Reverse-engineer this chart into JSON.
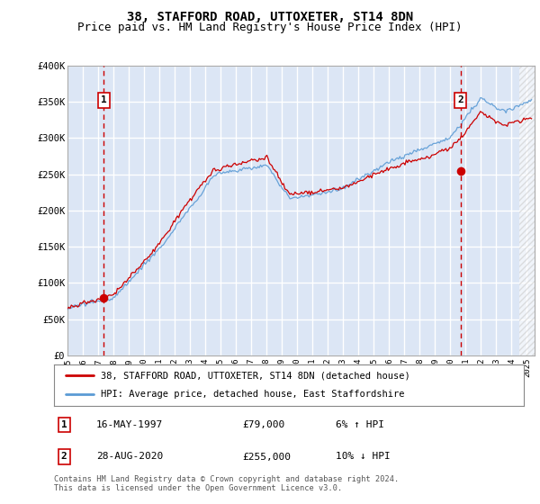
{
  "title": "38, STAFFORD ROAD, UTTOXETER, ST14 8DN",
  "subtitle": "Price paid vs. HM Land Registry's House Price Index (HPI)",
  "ylim": [
    0,
    400000
  ],
  "yticks": [
    0,
    50000,
    100000,
    150000,
    200000,
    250000,
    300000,
    350000,
    400000
  ],
  "ytick_labels": [
    "£0",
    "£50K",
    "£100K",
    "£150K",
    "£200K",
    "£250K",
    "£300K",
    "£350K",
    "£400K"
  ],
  "xlim_start": 1995.0,
  "xlim_end": 2025.5,
  "hatch_start": 2024.5,
  "plot_bg_color": "#dce6f5",
  "grid_color": "#ffffff",
  "hpi_line_color": "#5b9bd5",
  "price_line_color": "#cc0000",
  "dashed_line_color": "#cc0000",
  "transaction1_date": 1997.38,
  "transaction1_price": 79000,
  "transaction2_date": 2020.66,
  "transaction2_price": 255000,
  "legend_entry1": "38, STAFFORD ROAD, UTTOXETER, ST14 8DN (detached house)",
  "legend_entry2": "HPI: Average price, detached house, East Staffordshire",
  "table_row1": [
    "1",
    "16-MAY-1997",
    "£79,000",
    "6% ↑ HPI"
  ],
  "table_row2": [
    "2",
    "28-AUG-2020",
    "£255,000",
    "10% ↓ HPI"
  ],
  "footer": "Contains HM Land Registry data © Crown copyright and database right 2024.\nThis data is licensed under the Open Government Licence v3.0.",
  "title_fontsize": 10,
  "subtitle_fontsize": 9
}
